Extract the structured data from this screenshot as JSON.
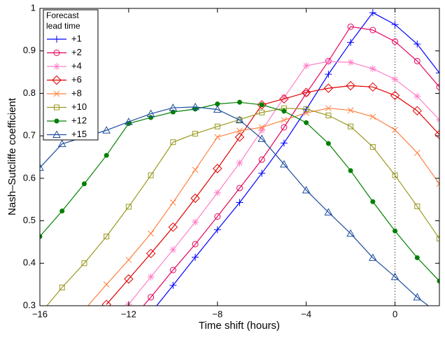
{
  "chart_data": {
    "type": "line",
    "x_label": "Time shift (hours)",
    "y_label": "Nash–Sutcliffe coefficient",
    "legend_title": [
      "Forecast",
      "lead time"
    ],
    "legend_position": "upper left",
    "x": [
      -16,
      -15,
      -14,
      -13,
      -12,
      -11,
      -10,
      -9,
      -8,
      -7,
      -6,
      -5,
      -4,
      -3,
      -2,
      -1,
      0,
      1,
      2
    ],
    "xlim": [
      -16,
      2
    ],
    "ylim": [
      0.3,
      1
    ],
    "xticks": [
      {
        "value": -16,
        "label": "−16"
      },
      {
        "value": -12,
        "label": "−12"
      },
      {
        "value": -8,
        "label": "−8"
      },
      {
        "value": -4,
        "label": "−4"
      },
      0
    ],
    "yticks": [
      0.3,
      0.4,
      0.5,
      0.6,
      0.7,
      0.8,
      0.9,
      1
    ],
    "reference_line_x": 0,
    "series": [
      {
        "name": "+1",
        "color": "#0000ff",
        "marker": "plus",
        "values": [
          null,
          null,
          null,
          null,
          null,
          0.283,
          0.348,
          0.414,
          0.479,
          0.543,
          0.612,
          0.683,
          0.762,
          0.845,
          0.92,
          0.99,
          0.962,
          0.916,
          0.848
        ]
      },
      {
        "name": "+2",
        "color": "#e6005c",
        "marker": "circle",
        "values": [
          null,
          null,
          null,
          null,
          0.26,
          0.32,
          0.384,
          0.445,
          0.51,
          0.577,
          0.644,
          0.72,
          0.8,
          0.876,
          0.957,
          0.949,
          0.922,
          0.876,
          0.815
        ]
      },
      {
        "name": "+4",
        "color": "#ff80c8",
        "marker": "asterisk",
        "values": [
          null,
          null,
          null,
          null,
          0.303,
          0.368,
          0.432,
          0.497,
          0.566,
          0.636,
          0.713,
          0.79,
          0.865,
          0.875,
          0.873,
          0.858,
          0.833,
          0.793,
          0.738
        ]
      },
      {
        "name": "+6",
        "color": "#e00000",
        "marker": "diamond",
        "values": [
          null,
          null,
          null,
          0.303,
          0.363,
          0.423,
          0.485,
          0.553,
          0.623,
          0.697,
          0.773,
          0.787,
          0.802,
          0.812,
          0.818,
          0.815,
          0.795,
          0.759,
          0.703
        ]
      },
      {
        "name": "+8",
        "color": "#ff8040",
        "marker": "x",
        "values": [
          null,
          null,
          0.29,
          0.35,
          0.408,
          0.47,
          0.543,
          0.62,
          0.697,
          0.712,
          0.72,
          0.737,
          0.754,
          0.765,
          0.76,
          0.745,
          0.714,
          0.66,
          0.587
        ]
      },
      {
        "name": "+10",
        "color": "#999922",
        "marker": "square",
        "values": [
          0.28,
          0.343,
          0.4,
          0.463,
          0.533,
          0.607,
          0.685,
          0.705,
          0.722,
          0.738,
          0.755,
          0.765,
          0.763,
          0.748,
          0.722,
          0.674,
          0.607,
          0.534,
          0.458
        ]
      },
      {
        "name": "+12",
        "color": "#008000",
        "marker": "dot",
        "values": [
          0.463,
          0.523,
          0.587,
          0.654,
          0.729,
          0.743,
          0.756,
          0.763,
          0.775,
          0.779,
          0.773,
          0.758,
          0.731,
          0.682,
          0.618,
          0.545,
          0.476,
          0.413,
          0.358
        ]
      },
      {
        "name": "+15",
        "color": "#1f4e9e",
        "marker": "triangle",
        "values": [
          0.625,
          0.681,
          0.697,
          0.713,
          0.733,
          0.752,
          0.766,
          0.768,
          0.762,
          0.737,
          0.693,
          0.633,
          0.572,
          0.52,
          0.47,
          0.413,
          0.368,
          0.32,
          0.28
        ]
      }
    ]
  }
}
